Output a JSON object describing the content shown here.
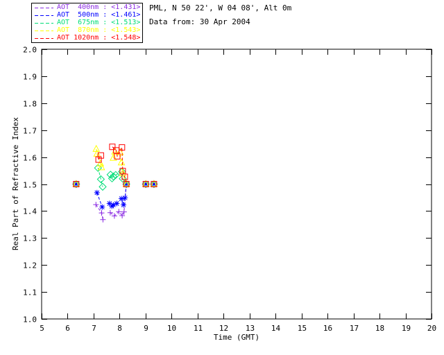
{
  "page": {
    "background": "#ffffff",
    "text_color": "#000000"
  },
  "header": {
    "site_line": "PML, N 50 22', W 04 08', Alt 0m",
    "date_line": "Data from: 30 Apr 2004"
  },
  "legend": {
    "entries": [
      {
        "label": "AOT  400nm : <1.431>",
        "wavelength": "400nm",
        "mean": "<1.431>",
        "color": "#8A2BE2",
        "marker": "plus"
      },
      {
        "label": "AOT  500nm : <1.461>",
        "wavelength": "500nm",
        "mean": "<1.461>",
        "color": "#0000FF",
        "marker": "asterisk"
      },
      {
        "label": "AOT  675nm : <1.513>",
        "wavelength": "675nm",
        "mean": "<1.513>",
        "color": "#00DD77",
        "marker": "diamond"
      },
      {
        "label": "AOT  870nm : <1.543>",
        "wavelength": "870nm",
        "mean": "<1.543>",
        "color": "#FFFF00",
        "marker": "triangle"
      },
      {
        "label": "AOT 1020nm : <1.548>",
        "wavelength": "1020nm",
        "mean": "<1.548>",
        "color": "#FF0000",
        "marker": "square"
      }
    ]
  },
  "chart_data": {
    "type": "line",
    "title": "",
    "xlabel": "Time (GMT)",
    "ylabel": "Real Part of Refractive Index",
    "xlim": [
      5,
      20
    ],
    "ylim": [
      1.0,
      2.0
    ],
    "xticks": [
      "5",
      "6",
      "7",
      "8",
      "9",
      "10",
      "11",
      "12",
      "13",
      "14",
      "15",
      "16",
      "17",
      "18",
      "19",
      "20"
    ],
    "yticks": [
      "1.0",
      "1.1",
      "1.2",
      "1.3",
      "1.4",
      "1.5",
      "1.6",
      "1.7",
      "1.8",
      "1.9",
      "2.0"
    ],
    "grid": false,
    "line_style": "dashed",
    "legend_position": "top-left-outside",
    "series": [
      {
        "name": "AOT 400nm",
        "color": "#8A2BE2",
        "marker": "plus",
        "mean_value": 1.431,
        "segments": [
          [
            [
              6.33,
              1.5
            ]
          ],
          [
            [
              7.09,
              1.424
            ],
            [
              7.31,
              1.393
            ],
            [
              7.36,
              1.368
            ]
          ],
          [
            [
              7.64,
              1.394
            ],
            [
              7.8,
              1.382
            ],
            [
              7.97,
              1.398
            ],
            [
              8.1,
              1.383
            ],
            [
              8.17,
              1.397
            ],
            [
              8.26,
              1.5
            ]
          ],
          [
            [
              9.01,
              1.5
            ]
          ],
          [
            [
              9.32,
              1.5
            ]
          ]
        ]
      },
      {
        "name": "AOT 500nm",
        "color": "#0000FF",
        "marker": "asterisk",
        "mean_value": 1.461,
        "segments": [
          [
            [
              6.33,
              1.5
            ]
          ],
          [
            [
              7.13,
              1.468
            ],
            [
              7.33,
              1.415
            ]
          ],
          [
            [
              7.61,
              1.428
            ],
            [
              7.7,
              1.418
            ],
            [
              7.76,
              1.423
            ],
            [
              7.89,
              1.428
            ],
            [
              8.07,
              1.446
            ],
            [
              8.15,
              1.423
            ],
            [
              8.21,
              1.449
            ],
            [
              8.26,
              1.5
            ]
          ],
          [
            [
              9.01,
              1.5
            ]
          ],
          [
            [
              9.32,
              1.5
            ]
          ]
        ]
      },
      {
        "name": "AOT 675nm",
        "color": "#00DD77",
        "marker": "diamond",
        "mean_value": 1.513,
        "segments": [
          [
            [
              6.33,
              1.5
            ]
          ],
          [
            [
              7.17,
              1.56
            ],
            [
              7.28,
              1.518
            ],
            [
              7.35,
              1.49
            ]
          ],
          [
            [
              7.65,
              1.535
            ],
            [
              7.71,
              1.521
            ],
            [
              7.76,
              1.528
            ],
            [
              7.85,
              1.534
            ],
            [
              8.09,
              1.546
            ],
            [
              8.12,
              1.52
            ],
            [
              8.26,
              1.5
            ]
          ],
          [
            [
              9.01,
              1.5
            ]
          ],
          [
            [
              9.32,
              1.5
            ]
          ]
        ]
      },
      {
        "name": "AOT 870nm",
        "color": "#FFFF00",
        "marker": "triangle",
        "mean_value": 1.543,
        "segments": [
          [
            [
              6.33,
              1.5
            ]
          ],
          [
            [
              7.1,
              1.63
            ],
            [
              7.13,
              1.612
            ],
            [
              7.26,
              1.576
            ],
            [
              7.3,
              1.562
            ]
          ],
          [
            [
              7.76,
              1.597
            ],
            [
              7.82,
              1.62
            ],
            [
              8.02,
              1.618
            ],
            [
              8.07,
              1.58
            ],
            [
              8.12,
              1.54
            ],
            [
              8.26,
              1.5
            ]
          ],
          [
            [
              9.01,
              1.5
            ]
          ],
          [
            [
              9.32,
              1.5
            ]
          ]
        ]
      },
      {
        "name": "AOT 1020nm",
        "color": "#FF0000",
        "marker": "square",
        "mean_value": 1.548,
        "segments": [
          [
            [
              6.33,
              1.5
            ]
          ],
          [
            [
              7.19,
              1.591
            ],
            [
              7.28,
              1.606
            ]
          ],
          [
            [
              7.72,
              1.638
            ],
            [
              7.87,
              1.625
            ],
            [
              7.91,
              1.603
            ],
            [
              8.09,
              1.636
            ],
            [
              8.12,
              1.548
            ],
            [
              8.2,
              1.527
            ],
            [
              8.26,
              1.5
            ]
          ],
          [
            [
              9.01,
              1.5
            ]
          ],
          [
            [
              9.32,
              1.5
            ]
          ]
        ]
      }
    ]
  }
}
